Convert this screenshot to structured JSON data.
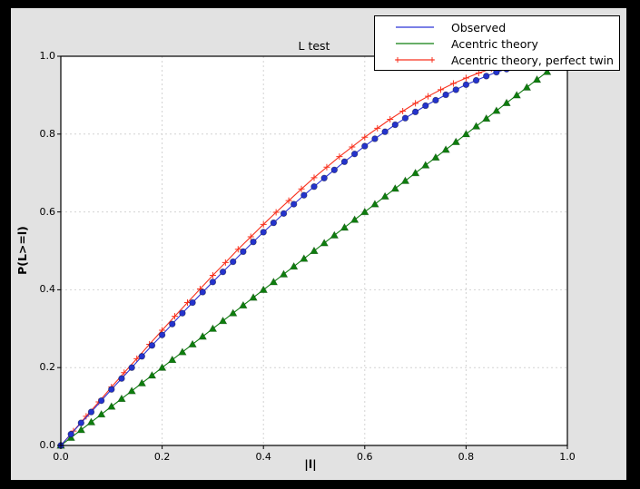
{
  "colors": {
    "outer_frame": "#000000",
    "figure_bg": "#e2e2e2",
    "plot_bg": "#ffffff",
    "axes_frame": "#000000",
    "grid": "#d2d2d2",
    "legend_bg": "#ffffff",
    "legend_border": "#000000"
  },
  "chart_data": {
    "type": "line",
    "title": "L test",
    "xlabel": "|l|",
    "ylabel": "P(L>=l)",
    "xlim": [
      0,
      1
    ],
    "ylim": [
      0,
      1
    ],
    "grid": true,
    "xticks": [
      0,
      0.2,
      0.4,
      0.6,
      0.8,
      1.0
    ],
    "yticks": [
      0,
      0.2,
      0.4,
      0.6,
      0.8,
      1.0
    ],
    "xtick_labels": [
      "0.0",
      "0.2",
      "0.4",
      "0.6",
      "0.8",
      "1.0"
    ],
    "ytick_labels": [
      "0.0",
      "0.2",
      "0.4",
      "0.6",
      "0.8",
      "1.0"
    ],
    "legend_position": "upper right, overlapping top-right of axes",
    "series": [
      {
        "name": "Observed",
        "color": "#2b35d8",
        "marker": "circle",
        "marker_color": "#2433cd",
        "show_marker_in_legend": false,
        "x": [
          0,
          0.02,
          0.04,
          0.06,
          0.08,
          0.1,
          0.12,
          0.14,
          0.16,
          0.18,
          0.2,
          0.22,
          0.24,
          0.26,
          0.28,
          0.3,
          0.32,
          0.34,
          0.36,
          0.38,
          0.4,
          0.42,
          0.44,
          0.46,
          0.48,
          0.5,
          0.52,
          0.54,
          0.56,
          0.58,
          0.6,
          0.62,
          0.64,
          0.66,
          0.68,
          0.7,
          0.72,
          0.74,
          0.76,
          0.78,
          0.8,
          0.82,
          0.84,
          0.86,
          0.88,
          0.9,
          0.92,
          0.94,
          0.96,
          0.98,
          1.0
        ],
        "values": [
          0,
          0.029,
          0.058,
          0.086,
          0.115,
          0.144,
          0.172,
          0.2,
          0.229,
          0.257,
          0.284,
          0.312,
          0.34,
          0.367,
          0.394,
          0.42,
          0.446,
          0.472,
          0.498,
          0.523,
          0.548,
          0.572,
          0.596,
          0.62,
          0.643,
          0.665,
          0.687,
          0.708,
          0.729,
          0.749,
          0.769,
          0.788,
          0.806,
          0.824,
          0.841,
          0.857,
          0.873,
          0.887,
          0.901,
          0.914,
          0.927,
          0.938,
          0.949,
          0.959,
          0.967,
          0.975,
          0.982,
          0.988,
          0.993,
          0.997,
          1.0
        ]
      },
      {
        "name": "Acentric theory",
        "color": "#0e7d0e",
        "marker": "triangle",
        "marker_color": "#0e7d0e",
        "show_marker_in_legend": false,
        "x": [
          0,
          0.02,
          0.04,
          0.06,
          0.08,
          0.1,
          0.12,
          0.14,
          0.16,
          0.18,
          0.2,
          0.22,
          0.24,
          0.26,
          0.28,
          0.3,
          0.32,
          0.34,
          0.36,
          0.38,
          0.4,
          0.42,
          0.44,
          0.46,
          0.48,
          0.5,
          0.52,
          0.54,
          0.56,
          0.58,
          0.6,
          0.62,
          0.64,
          0.66,
          0.68,
          0.7,
          0.72,
          0.74,
          0.76,
          0.78,
          0.8,
          0.82,
          0.84,
          0.86,
          0.88,
          0.9,
          0.92,
          0.94,
          0.96,
          0.98,
          1.0
        ],
        "values": [
          0,
          0.02,
          0.04,
          0.06,
          0.08,
          0.1,
          0.12,
          0.14,
          0.16,
          0.18,
          0.2,
          0.22,
          0.24,
          0.26,
          0.28,
          0.3,
          0.32,
          0.34,
          0.36,
          0.38,
          0.4,
          0.42,
          0.44,
          0.46,
          0.48,
          0.5,
          0.52,
          0.54,
          0.56,
          0.58,
          0.6,
          0.62,
          0.64,
          0.66,
          0.68,
          0.7,
          0.72,
          0.74,
          0.76,
          0.78,
          0.8,
          0.82,
          0.84,
          0.86,
          0.88,
          0.9,
          0.92,
          0.94,
          0.96,
          0.98,
          1.0
        ]
      },
      {
        "name": "Acentric theory, perfect twin",
        "color": "#f8321f",
        "marker": "plus",
        "marker_color": "#f8321f",
        "show_marker_in_legend": true,
        "x": [
          0,
          0.025,
          0.05,
          0.075,
          0.1,
          0.125,
          0.15,
          0.175,
          0.2,
          0.225,
          0.25,
          0.275,
          0.3,
          0.325,
          0.35,
          0.375,
          0.4,
          0.425,
          0.45,
          0.475,
          0.5,
          0.525,
          0.55,
          0.575,
          0.6,
          0.625,
          0.65,
          0.675,
          0.7,
          0.725,
          0.75,
          0.775,
          0.8,
          0.825,
          0.85,
          0.875,
          0.9,
          0.925,
          0.95,
          0.975,
          1.0
        ],
        "values": [
          0,
          0.037,
          0.075,
          0.112,
          0.15,
          0.187,
          0.223,
          0.26,
          0.296,
          0.332,
          0.367,
          0.402,
          0.437,
          0.47,
          0.504,
          0.536,
          0.568,
          0.599,
          0.629,
          0.659,
          0.688,
          0.715,
          0.742,
          0.767,
          0.792,
          0.815,
          0.838,
          0.859,
          0.879,
          0.897,
          0.914,
          0.93,
          0.944,
          0.957,
          0.968,
          0.978,
          0.986,
          0.992,
          0.996,
          0.999,
          1.0
        ]
      }
    ]
  }
}
